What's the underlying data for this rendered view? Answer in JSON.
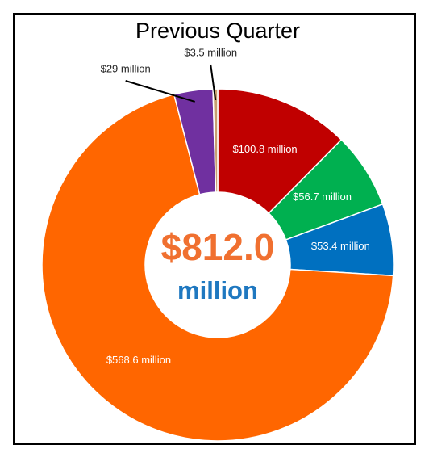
{
  "chart_data": {
    "type": "donut",
    "title": "Previous Quarter",
    "categories": [
      null,
      null,
      null,
      null,
      null,
      null
    ],
    "values": [
      100.8,
      56.7,
      53.4,
      568.6,
      29,
      3.5
    ],
    "value_labels": [
      "$100.8 million",
      "$56.7 million",
      "$53.4 million",
      "$568.6 million",
      "$29 million",
      "$3.5 million"
    ],
    "colors": [
      "#c00000",
      "#00b050",
      "#0070c0",
      "#ff6600",
      "#7030a0",
      "#c8a070"
    ],
    "center_text": [
      "$812.0",
      "million"
    ]
  }
}
